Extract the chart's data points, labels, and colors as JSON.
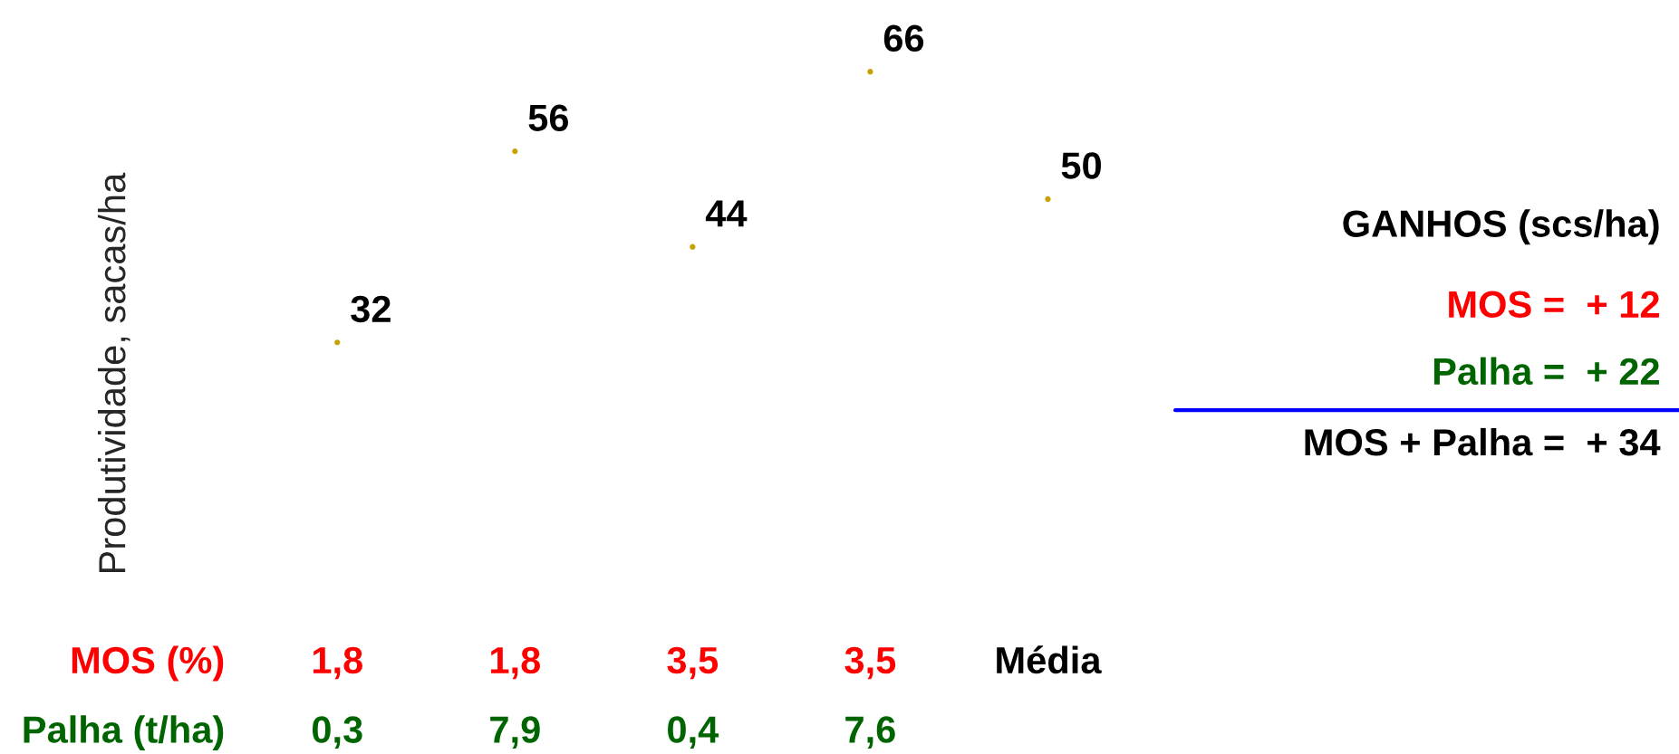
{
  "chart_data": {
    "type": "scatter",
    "ylabel": "Produtividade, sacas/ha",
    "categories": [
      "1,8\n0,3",
      "1,8\n7,9",
      "3,5\n0,4",
      "3,5\n7,6",
      "Média"
    ],
    "series": [
      {
        "color": "#c8a000",
        "values": [
          32,
          56,
          44,
          66,
          50
        ]
      }
    ],
    "marker": "circle",
    "data_labels": true,
    "tick_labels": "x",
    "annotations": [
      "MOS (%)",
      "Palha (t/ha)",
      "GANHOS (scs/ha)",
      "MOS =  + 12",
      "Palha =  + 22",
      "MOS + Palha =  + 34"
    ]
  }
}
